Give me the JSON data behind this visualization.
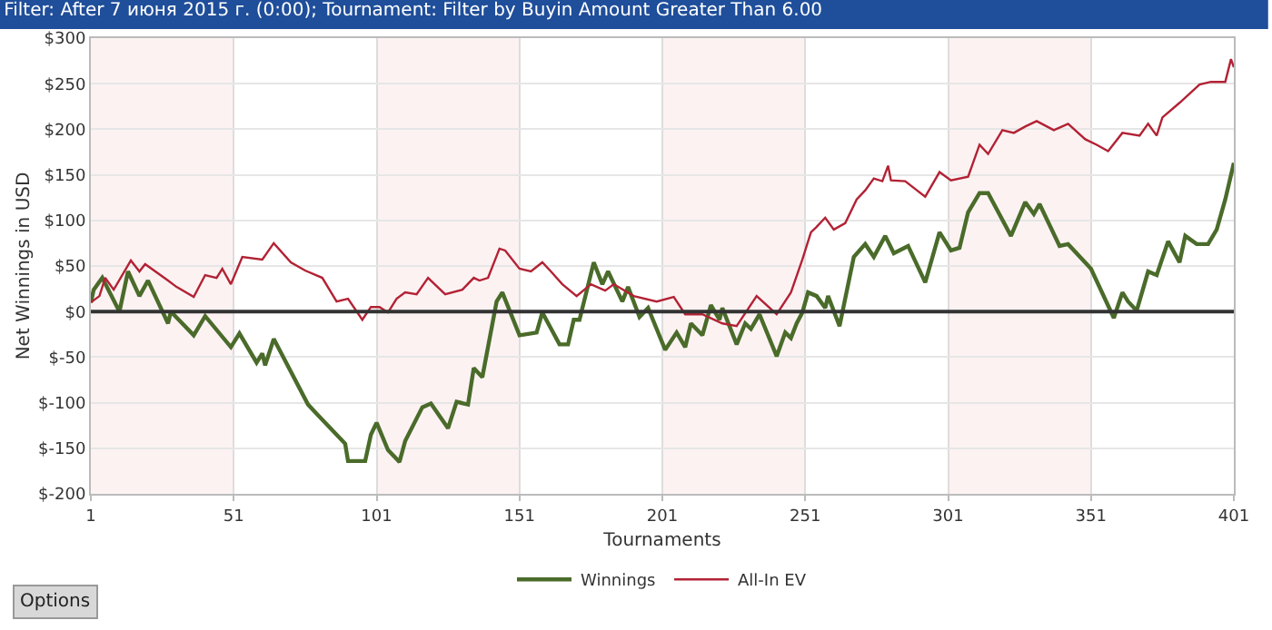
{
  "chart_data": {
    "type": "line",
    "title": "Filter: After 7 июня 2015 г. (0:00); Tournament: Filter by Buyin Amount Greater Than 6.00",
    "xlabel": "Tournaments",
    "ylabel": "Net Winnings in USD",
    "annotations": [
      "Options"
    ],
    "xlim": [
      1,
      401
    ],
    "xticks": [
      1,
      51,
      101,
      151,
      201,
      251,
      301,
      351,
      401
    ],
    "ylim": [
      -200,
      300
    ],
    "yticks": [
      {
        "value": -200,
        "label": "$-200"
      },
      {
        "value": -150,
        "label": "$-150"
      },
      {
        "value": -100,
        "label": "$-100"
      },
      {
        "value": -50,
        "label": "$-50"
      },
      {
        "value": 0,
        "label": "$0"
      },
      {
        "value": 50,
        "label": "$50"
      },
      {
        "value": 100,
        "label": "$100"
      },
      {
        "value": 150,
        "label": "$150"
      },
      {
        "value": 200,
        "label": "$200"
      },
      {
        "value": 250,
        "label": "$250"
      },
      {
        "value": 300,
        "label": "$300"
      }
    ],
    "grid": true,
    "legend": "bottom",
    "marker": "none",
    "line_style": "solid",
    "ref_lines": [
      {
        "axis": "y",
        "value": 0,
        "label": null,
        "color": "#333333"
      }
    ],
    "bands": [
      {
        "axis": "x",
        "from": 1,
        "to": 51,
        "label": null,
        "color": "#fcf2f2"
      },
      {
        "axis": "x",
        "from": 101,
        "to": 151,
        "label": null,
        "color": "#fcf2f2"
      },
      {
        "axis": "x",
        "from": 201,
        "to": 251,
        "label": null,
        "color": "#fcf2f2"
      },
      {
        "axis": "x",
        "from": 301,
        "to": 351,
        "label": null,
        "color": "#fcf2f2"
      }
    ],
    "series": [
      {
        "name": "Winnings",
        "color": "#4a6b2a",
        "x": [
          1,
          2,
          5,
          11,
          14,
          18,
          21,
          28,
          29,
          37,
          41,
          50,
          53,
          59,
          61,
          62,
          65,
          77,
          80,
          90,
          91,
          97,
          99,
          101,
          105,
          109,
          111,
          117,
          120,
          126,
          129,
          133,
          135,
          138,
          143,
          145,
          151,
          157,
          159,
          165,
          168,
          170,
          172,
          177,
          180,
          182,
          187,
          189,
          193,
          196,
          202,
          206,
          209,
          211,
          215,
          218,
          221,
          222,
          227,
          230,
          232,
          235,
          241,
          244,
          246,
          248,
          250,
          252,
          255,
          258,
          259,
          263,
          268,
          272,
          275,
          279,
          282,
          287,
          293,
          298,
          302,
          305,
          308,
          312,
          315,
          323,
          328,
          331,
          333,
          340,
          343,
          351,
          359,
          362,
          364,
          367,
          371,
          374,
          378,
          382,
          384,
          388,
          392,
          395,
          398,
          401
        ],
        "values": [
          10,
          24,
          37,
          0,
          44,
          17,
          34,
          -13,
          0,
          -26,
          -5,
          -39,
          -24,
          -56,
          -46,
          -59,
          -30,
          -102,
          -112,
          -145,
          -164,
          -164,
          -135,
          -122,
          -152,
          -165,
          -142,
          -105,
          -101,
          -128,
          -99,
          -102,
          -62,
          -72,
          11,
          21,
          -26,
          -23,
          -1,
          -36,
          -36,
          -9,
          -9,
          54,
          30,
          44,
          11,
          27,
          -6,
          4,
          -42,
          -23,
          -39,
          -13,
          -26,
          7,
          -9,
          4,
          -36,
          -13,
          -19,
          -3,
          -49,
          -23,
          -29,
          -13,
          -1,
          21,
          17,
          4,
          17,
          -16,
          60,
          74,
          60,
          83,
          64,
          72,
          32,
          87,
          67,
          70,
          109,
          130,
          130,
          83,
          120,
          107,
          118,
          72,
          74,
          47,
          -7,
          21,
          11,
          1,
          44,
          40,
          77,
          54,
          83,
          74,
          74,
          90,
          123,
          163
        ]
      },
      {
        "name": "All-In EV",
        "color": "#b22234",
        "x": [
          1,
          4,
          6,
          9,
          15,
          18,
          20,
          28,
          31,
          37,
          41,
          45,
          47,
          50,
          54,
          61,
          65,
          71,
          76,
          82,
          87,
          91,
          96,
          99,
          102,
          105,
          108,
          111,
          115,
          119,
          125,
          131,
          135,
          137,
          140,
          144,
          146,
          151,
          155,
          159,
          162,
          166,
          171,
          176,
          181,
          184,
          191,
          199,
          205,
          209,
          215,
          222,
          227,
          234,
          241,
          246,
          250,
          253,
          255,
          258,
          261,
          265,
          269,
          272,
          275,
          278,
          280,
          281,
          286,
          293,
          298,
          302,
          308,
          312,
          315,
          320,
          324,
          328,
          332,
          338,
          343,
          349,
          353,
          357,
          362,
          368,
          371,
          374,
          376,
          382,
          389,
          393,
          398,
          400,
          401
        ],
        "values": [
          10,
          17,
          37,
          24,
          56,
          44,
          52,
          34,
          27,
          16,
          40,
          37,
          47,
          30,
          60,
          57,
          75,
          54,
          45,
          37,
          11,
          14,
          -9,
          5,
          5,
          -1,
          14,
          21,
          19,
          37,
          19,
          24,
          37,
          34,
          37,
          69,
          67,
          47,
          44,
          54,
          44,
          30,
          17,
          30,
          23,
          30,
          17,
          11,
          16,
          -3,
          -3,
          -13,
          -16,
          17,
          -3,
          21,
          57,
          87,
          93,
          103,
          90,
          97,
          123,
          133,
          146,
          143,
          160,
          144,
          143,
          126,
          153,
          144,
          148,
          183,
          173,
          199,
          196,
          203,
          209,
          199,
          206,
          189,
          183,
          176,
          196,
          193,
          206,
          193,
          213,
          229,
          249,
          252,
          252,
          277,
          268
        ]
      }
    ]
  }
}
